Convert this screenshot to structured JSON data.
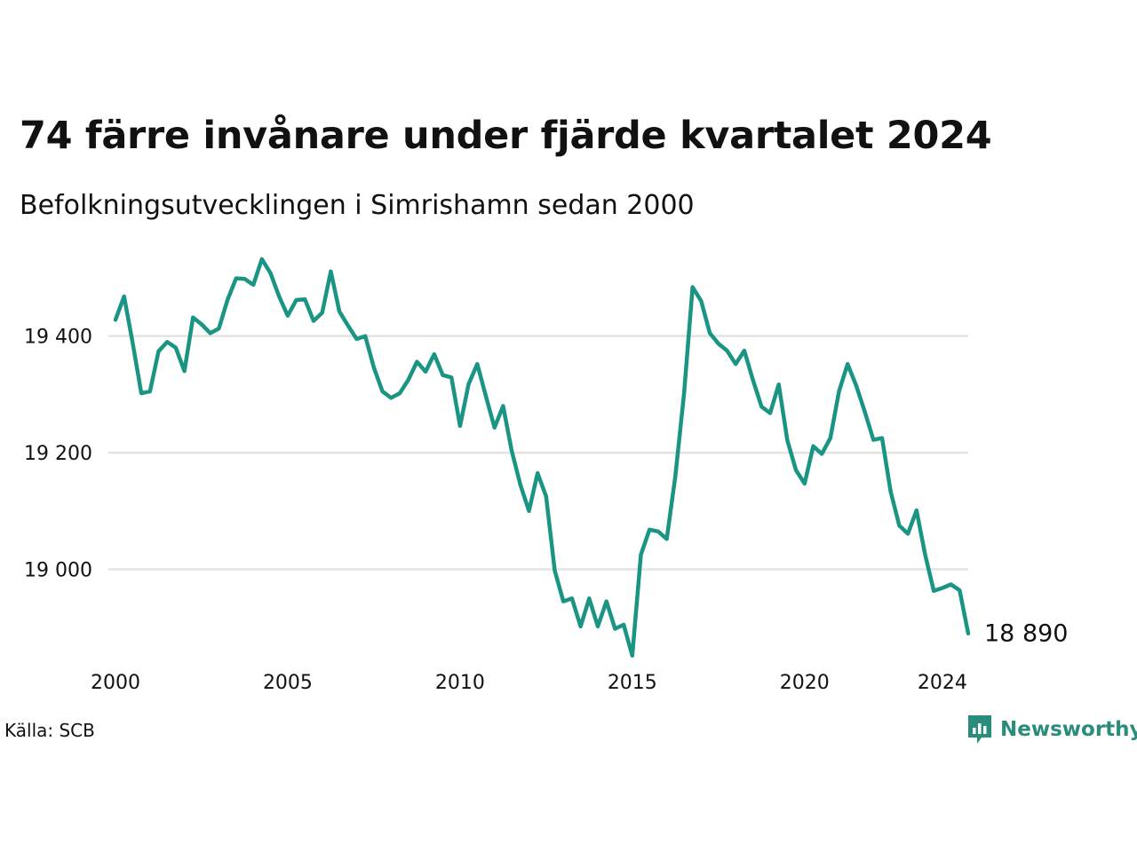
{
  "title": "74 färre invånare under fjärde kvartalet 2024",
  "subtitle": "Befolkningsutvecklingen i Simrishamn sedan 2000",
  "source": "Källa: SCB",
  "logo": {
    "name": "Newsworthy",
    "icon": "newsworthy-logo-icon"
  },
  "colors": {
    "line": "#1b9583",
    "grid": "#e3e3e3",
    "logo": "#2a8c7a"
  },
  "chart_data": {
    "type": "line",
    "title": "74 färre invånare under fjärde kvartalet 2024",
    "subtitle": "Befolkningsutvecklingen i Simrishamn sedan 2000",
    "xlabel": "",
    "ylabel": "",
    "xlim": [
      2000,
      2024.75
    ],
    "ylim": [
      18850,
      19535
    ],
    "x_ticks": [
      2000,
      2005,
      2010,
      2015,
      2020,
      2024
    ],
    "x_tick_labels": [
      "2000",
      "2005",
      "2010",
      "2015",
      "2020",
      "2024"
    ],
    "y_ticks": [
      19000,
      19200,
      19400
    ],
    "y_tick_labels": [
      "19 000",
      "19 200",
      "19 400"
    ],
    "grid": "horizontal",
    "legend": "none",
    "end_label": "18 890",
    "x": [
      2000,
      2000.25,
      2000.5,
      2000.75,
      2001,
      2001.25,
      2001.5,
      2001.75,
      2002,
      2002.25,
      2002.5,
      2002.75,
      2003,
      2003.25,
      2003.5,
      2003.75,
      2004,
      2004.25,
      2004.5,
      2004.75,
      2005,
      2005.25,
      2005.5,
      2005.75,
      2006,
      2006.25,
      2006.5,
      2006.75,
      2007,
      2007.25,
      2007.5,
      2007.75,
      2008,
      2008.25,
      2008.5,
      2008.75,
      2009,
      2009.25,
      2009.5,
      2009.75,
      2010,
      2010.25,
      2010.5,
      2010.75,
      2011,
      2011.25,
      2011.5,
      2011.75,
      2012,
      2012.25,
      2012.5,
      2012.75,
      2013,
      2013.25,
      2013.5,
      2013.75,
      2014,
      2014.25,
      2014.5,
      2014.75,
      2015,
      2015.25,
      2015.5,
      2015.75,
      2016,
      2016.25,
      2016.5,
      2016.75,
      2017,
      2017.25,
      2017.5,
      2017.75,
      2018,
      2018.25,
      2018.5,
      2018.75,
      2019,
      2019.25,
      2019.5,
      2019.75,
      2020,
      2020.25,
      2020.5,
      2020.75,
      2021,
      2021.25,
      2021.5,
      2021.75,
      2022,
      2022.25,
      2022.5,
      2022.75,
      2023,
      2023.25,
      2023.5,
      2023.75,
      2024,
      2024.25,
      2024.5,
      2024.75
    ],
    "series": [
      {
        "values": [
          19428,
          19468,
          19388,
          19302,
          19305,
          19374,
          19390,
          19380,
          19340,
          19432,
          19420,
          19405,
          19413,
          19462,
          19499,
          19498,
          19488,
          19532,
          19508,
          19468,
          19435,
          19462,
          19463,
          19426,
          19440,
          19511,
          19442,
          19418,
          19395,
          19400,
          19346,
          19305,
          19294,
          19302,
          19325,
          19356,
          19339,
          19369,
          19333,
          19329,
          19246,
          19318,
          19352,
          19297,
          19243,
          19280,
          19203,
          19145,
          19100,
          19165,
          19125,
          18998,
          18945,
          18950,
          18902,
          18950,
          18902,
          18945,
          18898,
          18905,
          18852,
          19025,
          19068,
          19065,
          19052,
          19160,
          19300,
          19484,
          19460,
          19405,
          19387,
          19375,
          19352,
          19375,
          19325,
          19279,
          19268,
          19317,
          19221,
          19170,
          19147,
          19211,
          19198,
          19225,
          19305,
          19352,
          19315,
          19270,
          19222,
          19225,
          19133,
          19075,
          19061,
          19101,
          19025,
          18963,
          18968,
          18974,
          18964,
          18890
        ]
      }
    ]
  }
}
